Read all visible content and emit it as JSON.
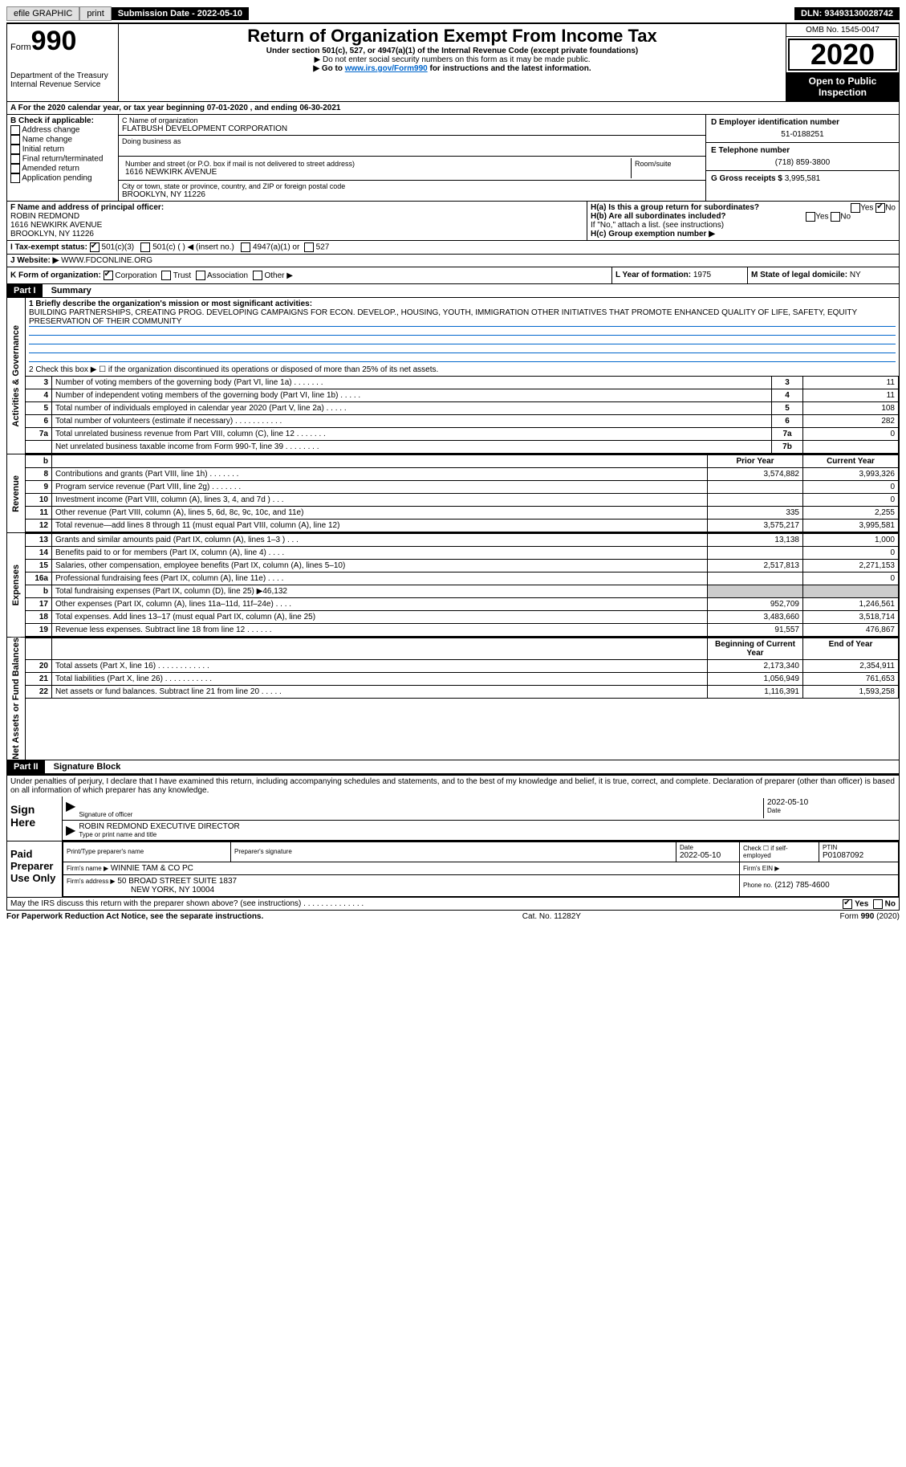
{
  "topbar": {
    "efile": "efile GRAPHIC",
    "print": "print",
    "subdate_label": "Submission Date - 2022-05-10",
    "dln": "DLN: 93493130028742"
  },
  "head": {
    "form_prefix": "Form",
    "form_no": "990",
    "dept": "Department of the Treasury\nInternal Revenue Service",
    "title": "Return of Organization Exempt From Income Tax",
    "subtitle": "Under section 501(c), 527, or 4947(a)(1) of the Internal Revenue Code (except private foundations)",
    "note1": "▶ Do not enter social security numbers on this form as it may be made public.",
    "note2_pre": "▶ Go to ",
    "note2_link": "www.irs.gov/Form990",
    "note2_post": " for instructions and the latest information.",
    "omb": "OMB No. 1545-0047",
    "year": "2020",
    "inspect": "Open to Public Inspection"
  },
  "rowA": "A For the 2020 calendar year, or tax year beginning 07-01-2020    , and ending 06-30-2021",
  "B": {
    "label": "B Check if applicable:",
    "items": [
      "Address change",
      "Name change",
      "Initial return",
      "Final return/terminated",
      "Amended return",
      "Application pending"
    ]
  },
  "C": {
    "name_label": "C Name of organization",
    "name": "FLATBUSH DEVELOPMENT CORPORATION",
    "dba_label": "Doing business as",
    "addr_label": "Number and street (or P.O. box if mail is not delivered to street address)",
    "room_label": "Room/suite",
    "addr": "1616 NEWKIRK AVENUE",
    "city_label": "City or town, state or province, country, and ZIP or foreign postal code",
    "city": "BROOKLYN, NY  11226"
  },
  "D": {
    "label": "D Employer identification number",
    "value": "51-0188251"
  },
  "E": {
    "label": "E Telephone number",
    "value": "(718) 859-3800"
  },
  "G": {
    "label": "G Gross receipts $",
    "value": "3,995,581"
  },
  "F": {
    "label": "F  Name and address of principal officer:",
    "name": "ROBIN REDMOND",
    "addr1": "1616 NEWKIRK AVENUE",
    "addr2": "BROOKLYN, NY  11226"
  },
  "H": {
    "a": "H(a)  Is this a group return for subordinates?",
    "a_yes": "Yes",
    "a_no": "No",
    "b": "H(b)  Are all subordinates included?",
    "b_yes": "Yes",
    "b_no": "No",
    "b_note": "If \"No,\" attach a list. (see instructions)",
    "c": "H(c)  Group exemption number ▶"
  },
  "I": {
    "label": "I    Tax-exempt status:",
    "opt1": "501(c)(3)",
    "opt2": "501(c) (   ) ◀ (insert no.)",
    "opt3": "4947(a)(1) or",
    "opt4": "527"
  },
  "J": {
    "label": "J    Website: ▶",
    "value": "WWW.FDCONLINE.ORG"
  },
  "K": {
    "label": "K Form of organization:",
    "opts": [
      "Corporation",
      "Trust",
      "Association",
      "Other ▶"
    ]
  },
  "L": {
    "label": "L Year of formation:",
    "value": "1975"
  },
  "M": {
    "label": "M State of legal domicile:",
    "value": "NY"
  },
  "part1": {
    "hdr": "Part I",
    "title": "Summary",
    "q1_label": "1  Briefly describe the organization's mission or most significant activities:",
    "q1_text": "BUILDING PARTNERSHIPS, CREATING PROG. DEVELOPING CAMPAIGNS FOR ECON. DEVELOP., HOUSING, YOUTH, IMMIGRATION OTHER INITIATIVES THAT PROMOTE ENHANCED QUALITY OF LIFE, SAFETY, EQUITY PRESERVATION OF THEIR COMMUNITY",
    "q2": "2    Check this box ▶ ☐  if the organization discontinued its operations or disposed of more than 25% of its net assets."
  },
  "side_labels": {
    "gov": "Activities & Governance",
    "rev": "Revenue",
    "exp": "Expenses",
    "net": "Net Assets or Fund Balances"
  },
  "gov_lines": [
    {
      "n": "3",
      "d": "Number of voting members of the governing body (Part VI, line 1a)   .    .    .    .    .    .    .",
      "b": "3",
      "v": "11"
    },
    {
      "n": "4",
      "d": "Number of independent voting members of the governing body (Part VI, line 1b)   .    .    .    .    .",
      "b": "4",
      "v": "11"
    },
    {
      "n": "5",
      "d": "Total number of individuals employed in calendar year 2020 (Part V, line 2a)   .    .    .    .    .",
      "b": "5",
      "v": "108"
    },
    {
      "n": "6",
      "d": "Total number of volunteers (estimate if necessary)   .    .    .    .    .    .    .    .    .    .    .",
      "b": "6",
      "v": "282"
    },
    {
      "n": "7a",
      "d": "Total unrelated business revenue from Part VIII, column (C), line 12   .    .    .    .    .    .    .",
      "b": "7a",
      "v": "0"
    },
    {
      "n": "",
      "d": "Net unrelated business taxable income from Form 990-T, line 39   .    .    .    .    .    .    .    .",
      "b": "7b",
      "v": ""
    }
  ],
  "col_hdr": {
    "b": "b",
    "prior": "Prior Year",
    "current": "Current Year"
  },
  "rev_lines": [
    {
      "n": "8",
      "d": "Contributions and grants (Part VIII, line 1h)   .    .    .    .    .    .    .",
      "p": "3,574,882",
      "c": "3,993,326"
    },
    {
      "n": "9",
      "d": "Program service revenue (Part VIII, line 2g)   .    .    .    .    .    .    .",
      "p": "",
      "c": "0"
    },
    {
      "n": "10",
      "d": "Investment income (Part VIII, column (A), lines 3, 4, and 7d )   .    .    .",
      "p": "",
      "c": "0"
    },
    {
      "n": "11",
      "d": "Other revenue (Part VIII, column (A), lines 5, 6d, 8c, 9c, 10c, and 11e)",
      "p": "335",
      "c": "2,255"
    },
    {
      "n": "12",
      "d": "Total revenue—add lines 8 through 11 (must equal Part VIII, column (A), line 12)",
      "p": "3,575,217",
      "c": "3,995,581"
    }
  ],
  "exp_lines": [
    {
      "n": "13",
      "d": "Grants and similar amounts paid (Part IX, column (A), lines 1–3 )   .    .    .",
      "p": "13,138",
      "c": "1,000"
    },
    {
      "n": "14",
      "d": "Benefits paid to or for members (Part IX, column (A), line 4)   .    .    .    .",
      "p": "",
      "c": "0"
    },
    {
      "n": "15",
      "d": "Salaries, other compensation, employee benefits (Part IX, column (A), lines 5–10)",
      "p": "2,517,813",
      "c": "2,271,153"
    },
    {
      "n": "16a",
      "d": "Professional fundraising fees (Part IX, column (A), line 11e)   .    .    .    .",
      "p": "",
      "c": "0"
    },
    {
      "n": "b",
      "d": "Total fundraising expenses (Part IX, column (D), line 25) ▶46,132",
      "p": "shade",
      "c": "shade"
    },
    {
      "n": "17",
      "d": "Other expenses (Part IX, column (A), lines 11a–11d, 11f–24e)   .    .    .    .",
      "p": "952,709",
      "c": "1,246,561"
    },
    {
      "n": "18",
      "d": "Total expenses. Add lines 13–17 (must equal Part IX, column (A), line 25)",
      "p": "3,483,660",
      "c": "3,518,714"
    },
    {
      "n": "19",
      "d": "Revenue less expenses. Subtract line 18 from line 12   .    .    .    .    .    .",
      "p": "91,557",
      "c": "476,867"
    }
  ],
  "net_hdr": {
    "beg": "Beginning of Current Year",
    "end": "End of Year"
  },
  "net_lines": [
    {
      "n": "20",
      "d": "Total assets (Part X, line 16)   .    .    .    .    .    .    .    .    .    .    .    .",
      "p": "2,173,340",
      "c": "2,354,911"
    },
    {
      "n": "21",
      "d": "Total liabilities (Part X, line 26)   .    .    .    .    .    .    .    .    .    .    .",
      "p": "1,056,949",
      "c": "761,653"
    },
    {
      "n": "22",
      "d": "Net assets or fund balances. Subtract line 21 from line 20   .    .    .    .    .",
      "p": "1,116,391",
      "c": "1,593,258"
    }
  ],
  "part2": {
    "hdr": "Part II",
    "title": "Signature Block"
  },
  "sig": {
    "declare": "Under penalties of perjury, I declare that I have examined this return, including accompanying schedules and statements, and to the best of my knowledge and belief, it is true, correct, and complete. Declaration of preparer (other than officer) is based on all information of which preparer has any knowledge.",
    "sign_here": "Sign Here",
    "sig_officer": "Signature of officer",
    "date_label": "Date",
    "date": "2022-05-10",
    "name_title": "ROBIN REDMOND  EXECUTIVE DIRECTOR",
    "name_label": "Type or print name and title"
  },
  "prep": {
    "label": "Paid Preparer Use Only",
    "c1": "Print/Type preparer's name",
    "c2": "Preparer's signature",
    "c3": "Date",
    "c3v": "2022-05-10",
    "c4": "Check ☐ if self-employed",
    "c5": "PTIN",
    "c5v": "P01087092",
    "firm_name_l": "Firm's name    ▶",
    "firm_name": "WINNIE TAM & CO PC",
    "firm_ein_l": "Firm's EIN ▶",
    "firm_addr_l": "Firm's address ▶",
    "firm_addr1": "50 BROAD STREET SUITE 1837",
    "firm_addr2": "NEW YORK, NY  10004",
    "phone_l": "Phone no.",
    "phone": "(212) 785-4600"
  },
  "discuss": {
    "q": "May the IRS discuss this return with the preparer shown above? (see instructions)   .    .    .    .    .    .    .    .    .    .    .    .    .    .",
    "yes": "Yes",
    "no": "No"
  },
  "footer": {
    "l": "For Paperwork Reduction Act Notice, see the separate instructions.",
    "c": "Cat. No. 11282Y",
    "r": "Form 990 (2020)"
  }
}
